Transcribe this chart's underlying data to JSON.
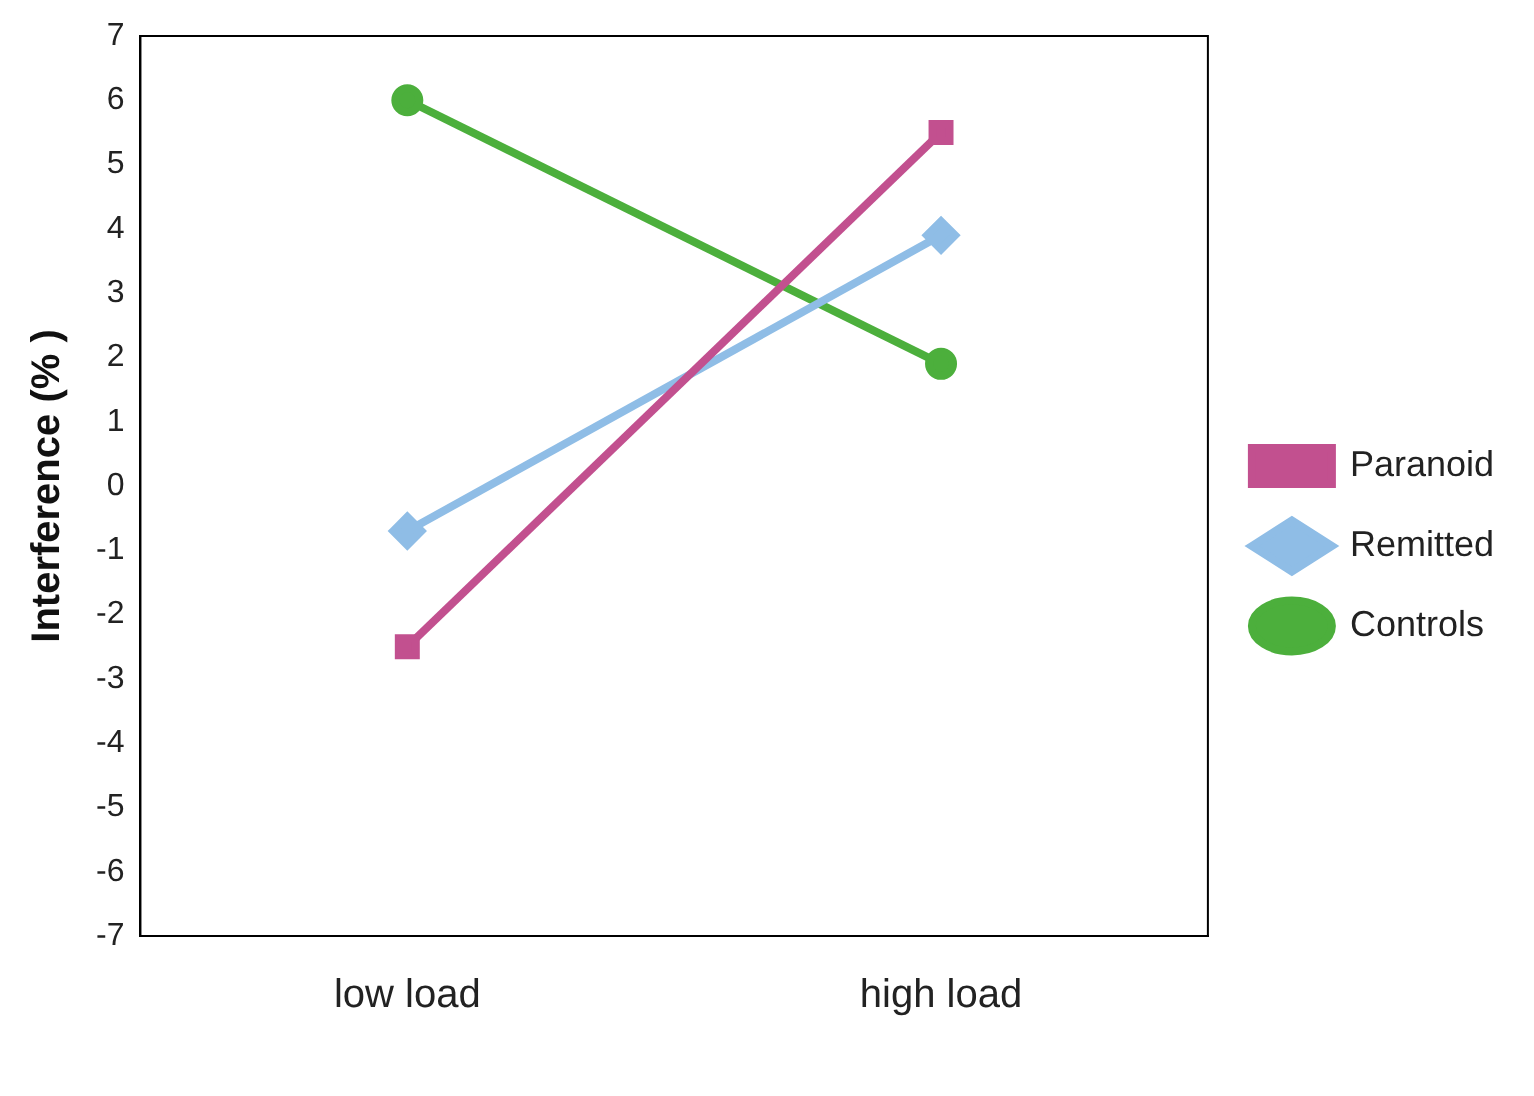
{
  "chart_data": {
    "type": "line",
    "ylabel": "Interference (% )",
    "categories": [
      "low load",
      "high load"
    ],
    "series": [
      {
        "name": "Paranoid",
        "color": "#c2508f",
        "marker": "square",
        "values": [
          -2.5,
          5.5
        ]
      },
      {
        "name": "Remitted",
        "color": "#8fbde6",
        "marker": "diamond",
        "values": [
          -0.7,
          3.9
        ]
      },
      {
        "name": "Controls",
        "color": "#4caf3c",
        "marker": "circle",
        "values": [
          6.0,
          1.9
        ]
      }
    ],
    "ylim": [
      -7,
      7
    ],
    "yticks": [
      -7,
      -6,
      -5,
      -4,
      -3,
      -2,
      -1,
      0,
      1,
      2,
      3,
      4,
      5,
      6,
      7
    ],
    "grid": false,
    "legend": "right"
  }
}
